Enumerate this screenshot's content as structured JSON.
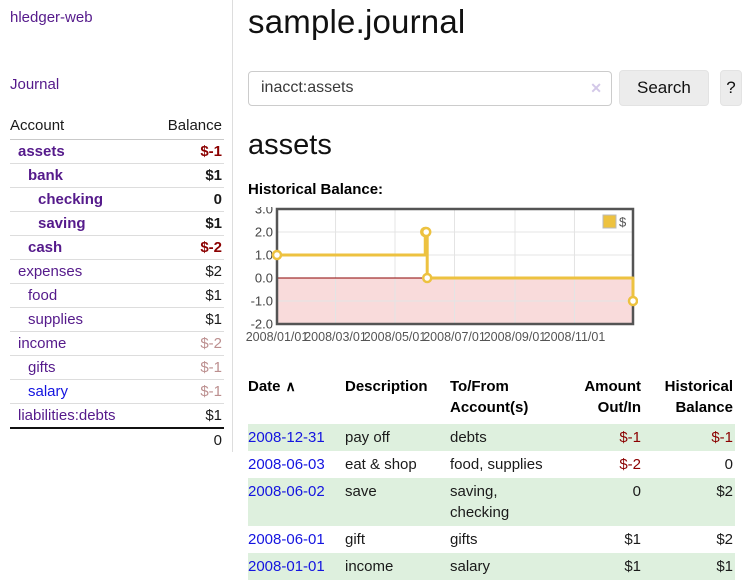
{
  "colors": {
    "link_visited": "#551a8b",
    "link_blue": "#1414e0",
    "negative": "#8b0000",
    "faded_negative": "#bc8f8f",
    "stripe_green": "#def0de",
    "button_bg": "#ececec",
    "chart_line": "#edc240",
    "chart_negative_fill": "#f9dbdb",
    "chart_zero_line": "#8b0000",
    "chart_border": "#545454",
    "chart_grid": "#e4e4e4",
    "chart_tick_text": "#545454"
  },
  "app": {
    "brand": "hledger-web",
    "nav_journal": "Journal"
  },
  "sidebar": {
    "table": {
      "headers": [
        "Account",
        "Balance"
      ],
      "rows": [
        {
          "name": "assets",
          "balance": "$-1",
          "indent": 0,
          "bold": true,
          "link": "visited",
          "bal_style": "neg"
        },
        {
          "name": "bank",
          "balance": "$1",
          "indent": 1,
          "bold": true,
          "link": "visited",
          "bal_style": "plain"
        },
        {
          "name": "checking",
          "balance": "0",
          "indent": 2,
          "bold": true,
          "link": "visited",
          "bal_style": "plain"
        },
        {
          "name": "saving",
          "balance": "$1",
          "indent": 2,
          "bold": true,
          "link": "visited",
          "bal_style": "plain"
        },
        {
          "name": "cash",
          "balance": "$-2",
          "indent": 1,
          "bold": true,
          "link": "visited",
          "bal_style": "neg"
        },
        {
          "name": "expenses",
          "balance": "$2",
          "indent": 0,
          "bold": false,
          "link": "visited",
          "bal_style": "plain"
        },
        {
          "name": "food",
          "balance": "$1",
          "indent": 1,
          "bold": false,
          "link": "visited",
          "bal_style": "plain"
        },
        {
          "name": "supplies",
          "balance": "$1",
          "indent": 1,
          "bold": false,
          "link": "visited",
          "bal_style": "plain"
        },
        {
          "name": "income",
          "balance": "$-2",
          "indent": 0,
          "bold": false,
          "link": "visited",
          "bal_style": "rose"
        },
        {
          "name": "gifts",
          "balance": "$-1",
          "indent": 1,
          "bold": false,
          "link": "visited",
          "bal_style": "rose"
        },
        {
          "name": "salary",
          "balance": "$-1",
          "indent": 1,
          "bold": false,
          "link": "unvisited",
          "bal_style": "rose"
        },
        {
          "name": "liabilities:debts",
          "balance": "$1",
          "indent": 0,
          "bold": false,
          "link": "visited",
          "bal_style": "plain"
        }
      ],
      "total": "0"
    }
  },
  "main": {
    "title": "sample.journal",
    "search": {
      "value": "inacct:assets",
      "clear_icon": "✕",
      "search_button": "Search",
      "help_button": "?"
    },
    "account_heading": "assets",
    "chart_label": "Historical Balance:"
  },
  "chart_data": {
    "type": "line",
    "title": "Historical Balance",
    "steps": true,
    "series": [
      {
        "name": "$",
        "points": [
          {
            "x": "2008-01-01",
            "y": 1
          },
          {
            "x": "2008-06-01",
            "y": 2
          },
          {
            "x": "2008-06-02",
            "y": 2
          },
          {
            "x": "2008-06-03",
            "y": 0
          },
          {
            "x": "2008-12-31",
            "y": -1
          }
        ]
      }
    ],
    "xrange": [
      "2008-01-01",
      "2008-12-31"
    ],
    "ylim": [
      -2,
      3
    ],
    "yticks": [
      3,
      2,
      1,
      0,
      -1,
      -2
    ],
    "xticks": [
      {
        "label": "2008/01/01",
        "date": "2008-01-01"
      },
      {
        "label": "2008/03/01",
        "date": "2008-03-01"
      },
      {
        "label": "2008/05/01",
        "date": "2008-05-01"
      },
      {
        "label": "2008/07/01",
        "date": "2008-07-01"
      },
      {
        "label": "2008/09/01",
        "date": "2008-09-01"
      },
      {
        "label": "2008/11/01",
        "date": "2008-11-01"
      }
    ],
    "grid": true,
    "legend_position": "top-right",
    "negative_region_shaded": true
  },
  "register": {
    "sort_indicator": "∧",
    "headers": [
      {
        "label": "Date",
        "sorted": "asc",
        "align": "left"
      },
      {
        "label": "Description",
        "align": "left"
      },
      {
        "label": "To/From Account(s)",
        "align": "left"
      },
      {
        "label": "Amount Out/In",
        "align": "right"
      },
      {
        "label": "Historical Balance",
        "align": "right"
      }
    ],
    "rows": [
      {
        "date": "2008-12-31",
        "description": "pay off",
        "accounts": "debts",
        "amount": "$-1",
        "amount_style": "neg",
        "balance": "$-1",
        "balance_style": "neg",
        "stripe": true
      },
      {
        "date": "2008-06-03",
        "description": "eat & shop",
        "accounts": "food, supplies",
        "amount": "$-2",
        "amount_style": "neg",
        "balance": "0",
        "balance_style": "plain",
        "stripe": false
      },
      {
        "date": "2008-06-02",
        "description": "save",
        "accounts": "saving, checking",
        "amount": "0",
        "amount_style": "plain",
        "balance": "$2",
        "balance_style": "plain",
        "stripe": true
      },
      {
        "date": "2008-06-01",
        "description": "gift",
        "accounts": "gifts",
        "amount": "$1",
        "amount_style": "plain",
        "balance": "$2",
        "balance_style": "plain",
        "stripe": false
      },
      {
        "date": "2008-01-01",
        "description": "income",
        "accounts": "salary",
        "amount": "$1",
        "amount_style": "plain",
        "balance": "$1",
        "balance_style": "plain",
        "stripe": true
      }
    ]
  }
}
